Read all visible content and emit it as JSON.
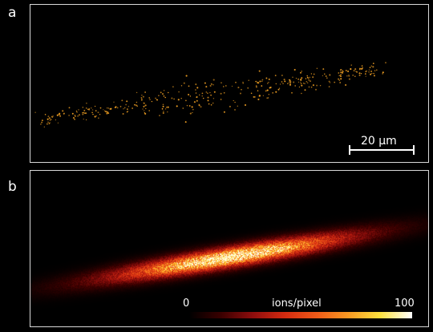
{
  "panels": {
    "a": {
      "label": "a",
      "scale_bar": {
        "text": "20 μm"
      }
    },
    "b": {
      "label": "b",
      "colorbar": {
        "min_label": "0",
        "unit_label": "ions/pixel",
        "max_label": "100",
        "colors": [
          "#000000",
          "#3a0000",
          "#8e0d0d",
          "#d42a10",
          "#f05a18",
          "#f99a22",
          "#fde23f",
          "#ffffff"
        ]
      }
    }
  },
  "colors": {
    "background": "#000000",
    "frame": "#d9d9d9",
    "ion_dot": "#f4a223"
  }
}
